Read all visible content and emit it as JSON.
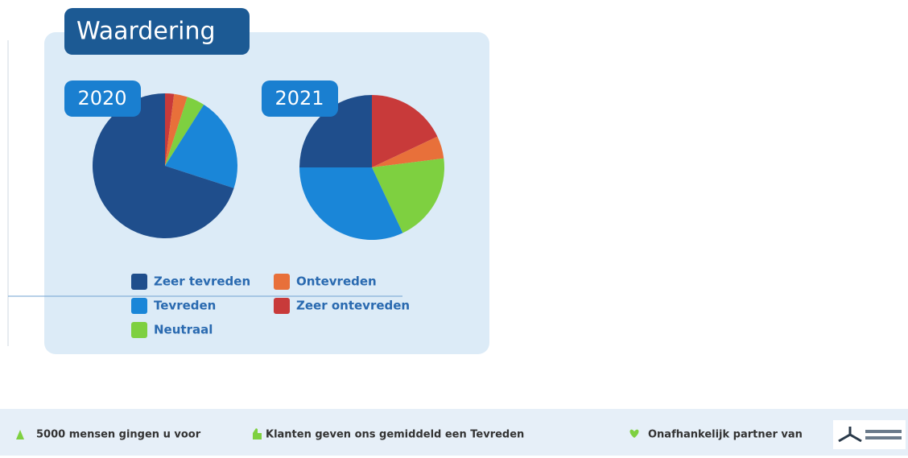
{
  "chart_data": {
    "type": "pie",
    "title": "Waardering",
    "categories": [
      "Zeer tevreden",
      "Tevreden",
      "Neutraal",
      "Ontevreden",
      "Zeer ontevreden"
    ],
    "colors": [
      "#1f4e8c",
      "#1a86d8",
      "#7ed040",
      "#e8703a",
      "#c83a3a"
    ],
    "series": [
      {
        "name": "2020",
        "values": [
          70,
          21,
          4,
          3,
          2
        ]
      },
      {
        "name": "2021",
        "values": [
          25,
          32,
          20,
          5,
          18
        ]
      }
    ]
  },
  "footer": [
    "5000 mensen gingen u voor",
    "Klanten geven ons gemiddeld een Tevreden",
    "Onafhankelijk partner van"
  ]
}
